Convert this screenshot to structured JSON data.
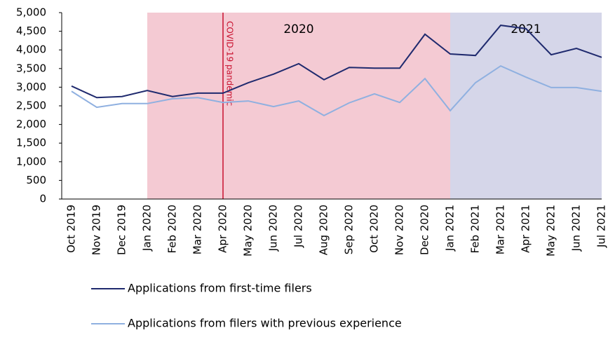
{
  "chart_data": {
    "type": "line",
    "categories": [
      "Oct 2019",
      "Nov 2019",
      "Dec 2019",
      "Jan 2020",
      "Feb 2020",
      "Mar 2020",
      "Apr 2020",
      "May 2020",
      "Jun 2020",
      "Jul 2020",
      "Aug 2020",
      "Sep 2020",
      "Oct 2020",
      "Nov 2020",
      "Dec 2020",
      "Jan 2021",
      "Feb 2021",
      "Mar 2021",
      "Apr 2021",
      "May 2021",
      "Jun 2021",
      "Jul 2021"
    ],
    "series": [
      {
        "name": "Applications from first-time filers",
        "color": "#1f2a6e",
        "values": [
          3030,
          2720,
          2750,
          2910,
          2750,
          2840,
          2840,
          3120,
          3350,
          3630,
          3200,
          3530,
          3510,
          3510,
          4420,
          3890,
          3850,
          4660,
          4570,
          3870,
          4040,
          3800
        ]
      },
      {
        "name": "Applications from filers with previous experience",
        "color": "#8fb0e0",
        "values": [
          2890,
          2460,
          2560,
          2560,
          2690,
          2720,
          2590,
          2630,
          2480,
          2630,
          2240,
          2580,
          2820,
          2590,
          3230,
          2370,
          3120,
          3570,
          3270,
          2990,
          2990,
          2890
        ]
      }
    ],
    "regions": [
      {
        "label": "2020",
        "start": "Jan 2020",
        "end": "Jan 2021",
        "color": "#f4cad3"
      },
      {
        "label": "2021",
        "start": "Jan 2021",
        "end": "Jul 2021",
        "color": "#d5d6e9"
      }
    ],
    "annotation": {
      "text": "COVID-19 pandemic",
      "at": "Apr 2020",
      "color": "#c8102e"
    },
    "ylim": [
      0,
      5000
    ],
    "yticks": [
      0,
      500,
      {
        "value": 1000,
        "label": "1,000"
      },
      {
        "value": 1500,
        "label": "1,500"
      },
      {
        "value": 2000,
        "label": "2,000"
      },
      {
        "value": 2500,
        "label": "2,500"
      },
      {
        "value": 3000,
        "label": "3,000"
      },
      {
        "value": 3500,
        "label": "3,500"
      },
      {
        "value": 4000,
        "label": "4,000"
      },
      {
        "value": 4500,
        "label": "4,500"
      },
      {
        "value": 5000,
        "label": "5,000"
      }
    ],
    "grid": false
  }
}
